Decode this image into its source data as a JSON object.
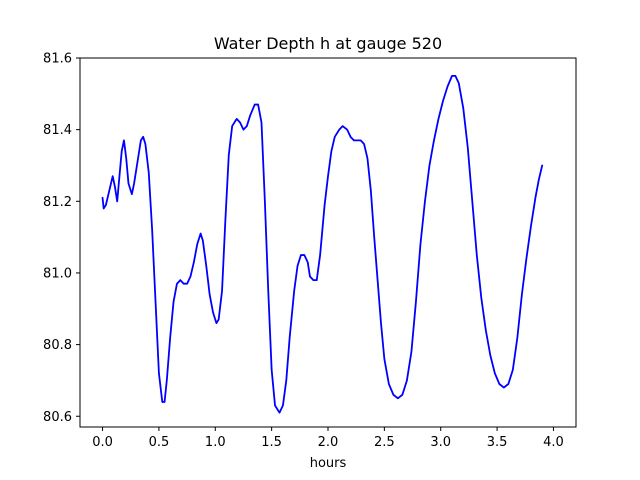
{
  "chart_data": {
    "type": "line",
    "title": "Water Depth h at gauge 520",
    "xlabel": "hours",
    "ylabel": "",
    "xlim": [
      -0.2,
      4.2
    ],
    "ylim": [
      80.57,
      81.6
    ],
    "grid": false,
    "x_ticks": [
      0.0,
      0.5,
      1.0,
      1.5,
      2.0,
      2.5,
      3.0,
      3.5,
      4.0
    ],
    "x_tick_labels": [
      "0.0",
      "0.5",
      "1.0",
      "1.5",
      "2.0",
      "2.5",
      "3.0",
      "3.5",
      "4.0"
    ],
    "y_ticks": [
      80.6,
      80.8,
      81.0,
      81.2,
      81.4,
      81.6
    ],
    "y_tick_labels": [
      "80.6",
      "80.8",
      "81.0",
      "81.2",
      "81.4",
      "81.6"
    ],
    "series": [
      {
        "color": "#0000ff",
        "points": [
          [
            0.0,
            81.21
          ],
          [
            0.01,
            81.18
          ],
          [
            0.03,
            81.19
          ],
          [
            0.06,
            81.23
          ],
          [
            0.09,
            81.27
          ],
          [
            0.11,
            81.24
          ],
          [
            0.13,
            81.2
          ],
          [
            0.15,
            81.27
          ],
          [
            0.17,
            81.34
          ],
          [
            0.19,
            81.37
          ],
          [
            0.21,
            81.32
          ],
          [
            0.23,
            81.25
          ],
          [
            0.26,
            81.22
          ],
          [
            0.28,
            81.25
          ],
          [
            0.31,
            81.31
          ],
          [
            0.34,
            81.37
          ],
          [
            0.36,
            81.38
          ],
          [
            0.38,
            81.36
          ],
          [
            0.41,
            81.28
          ],
          [
            0.44,
            81.12
          ],
          [
            0.47,
            80.92
          ],
          [
            0.5,
            80.72
          ],
          [
            0.53,
            80.64
          ],
          [
            0.55,
            80.64
          ],
          [
            0.57,
            80.7
          ],
          [
            0.6,
            80.82
          ],
          [
            0.63,
            80.92
          ],
          [
            0.66,
            80.97
          ],
          [
            0.69,
            80.98
          ],
          [
            0.72,
            80.97
          ],
          [
            0.75,
            80.97
          ],
          [
            0.78,
            80.99
          ],
          [
            0.81,
            81.03
          ],
          [
            0.84,
            81.08
          ],
          [
            0.87,
            81.11
          ],
          [
            0.89,
            81.09
          ],
          [
            0.92,
            81.02
          ],
          [
            0.95,
            80.94
          ],
          [
            0.98,
            80.89
          ],
          [
            1.01,
            80.86
          ],
          [
            1.03,
            80.87
          ],
          [
            1.06,
            80.95
          ],
          [
            1.09,
            81.15
          ],
          [
            1.12,
            81.33
          ],
          [
            1.15,
            81.41
          ],
          [
            1.19,
            81.43
          ],
          [
            1.22,
            81.42
          ],
          [
            1.25,
            81.4
          ],
          [
            1.28,
            81.41
          ],
          [
            1.31,
            81.44
          ],
          [
            1.35,
            81.47
          ],
          [
            1.38,
            81.47
          ],
          [
            1.41,
            81.42
          ],
          [
            1.44,
            81.2
          ],
          [
            1.47,
            80.95
          ],
          [
            1.5,
            80.73
          ],
          [
            1.53,
            80.63
          ],
          [
            1.57,
            80.61
          ],
          [
            1.6,
            80.63
          ],
          [
            1.63,
            80.7
          ],
          [
            1.66,
            80.82
          ],
          [
            1.7,
            80.95
          ],
          [
            1.73,
            81.02
          ],
          [
            1.76,
            81.05
          ],
          [
            1.79,
            81.05
          ],
          [
            1.82,
            81.03
          ],
          [
            1.84,
            80.99
          ],
          [
            1.87,
            80.98
          ],
          [
            1.9,
            80.98
          ],
          [
            1.93,
            81.05
          ],
          [
            1.97,
            81.19
          ],
          [
            2.0,
            81.27
          ],
          [
            2.03,
            81.34
          ],
          [
            2.06,
            81.38
          ],
          [
            2.1,
            81.4
          ],
          [
            2.13,
            81.41
          ],
          [
            2.17,
            81.4
          ],
          [
            2.2,
            81.38
          ],
          [
            2.23,
            81.37
          ],
          [
            2.26,
            81.37
          ],
          [
            2.29,
            81.37
          ],
          [
            2.32,
            81.36
          ],
          [
            2.35,
            81.32
          ],
          [
            2.38,
            81.23
          ],
          [
            2.41,
            81.1
          ],
          [
            2.44,
            80.98
          ],
          [
            2.47,
            80.86
          ],
          [
            2.5,
            80.76
          ],
          [
            2.54,
            80.69
          ],
          [
            2.58,
            80.66
          ],
          [
            2.62,
            80.65
          ],
          [
            2.66,
            80.66
          ],
          [
            2.7,
            80.7
          ],
          [
            2.74,
            80.78
          ],
          [
            2.78,
            80.92
          ],
          [
            2.82,
            81.08
          ],
          [
            2.86,
            81.2
          ],
          [
            2.9,
            81.3
          ],
          [
            2.94,
            81.37
          ],
          [
            2.98,
            81.43
          ],
          [
            3.02,
            81.48
          ],
          [
            3.06,
            81.52
          ],
          [
            3.1,
            81.55
          ],
          [
            3.13,
            81.55
          ],
          [
            3.16,
            81.53
          ],
          [
            3.2,
            81.46
          ],
          [
            3.24,
            81.35
          ],
          [
            3.28,
            81.2
          ],
          [
            3.32,
            81.05
          ],
          [
            3.36,
            80.93
          ],
          [
            3.4,
            80.84
          ],
          [
            3.44,
            80.77
          ],
          [
            3.48,
            80.72
          ],
          [
            3.52,
            80.69
          ],
          [
            3.56,
            80.68
          ],
          [
            3.6,
            80.69
          ],
          [
            3.64,
            80.73
          ],
          [
            3.68,
            80.82
          ],
          [
            3.72,
            80.94
          ],
          [
            3.76,
            81.04
          ],
          [
            3.8,
            81.13
          ],
          [
            3.84,
            81.21
          ],
          [
            3.87,
            81.26
          ],
          [
            3.9,
            81.3
          ]
        ]
      }
    ]
  }
}
